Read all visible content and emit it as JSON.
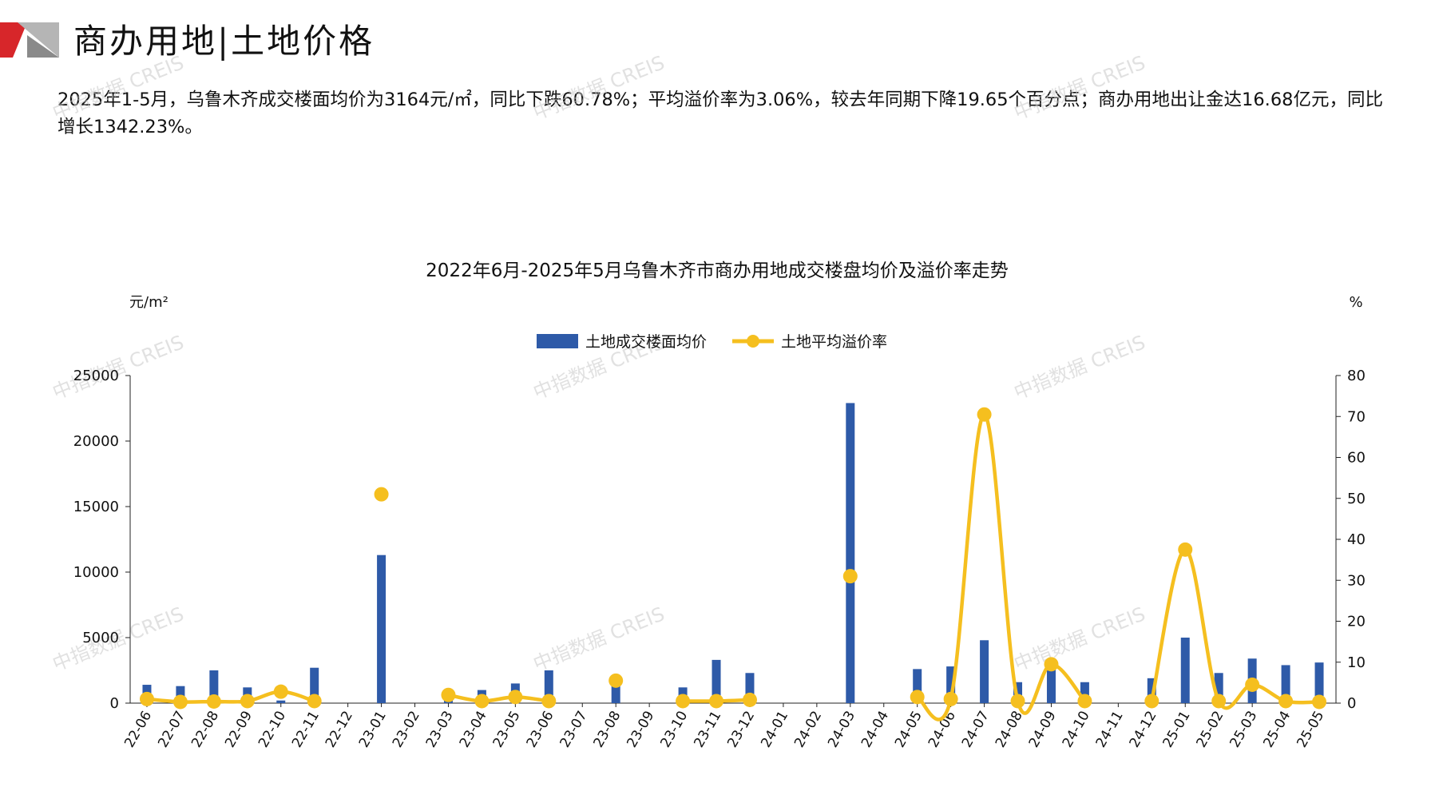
{
  "header": {
    "title": "商办用地|土地价格",
    "logo": "red-grey-triangle-logo"
  },
  "summary": "2025年1-5月，乌鲁木齐成交楼面均价为3164元/㎡，同比下跌60.78%；平均溢价率为3.06%，较去年同期下降19.65个百分点；商办用地出让金达16.68亿元，同比增长1342.23%。",
  "watermark_text": "中指数据 CREIS",
  "colors": {
    "bar": "#2e5aa8",
    "line": "#f5bf1f",
    "accent_red": "#d7262a",
    "logo_grey": "#b5b5b5"
  },
  "chart_data": {
    "type": "bar+line",
    "title": "2022年6月-2025年5月乌鲁木齐市商办用地成交楼盘均价及溢价率走势",
    "y_left_unit": "元/m²",
    "y_right_unit": "%",
    "y_left_lim": [
      0,
      25000
    ],
    "y_right_lim": [
      0,
      80
    ],
    "y_left_ticks": [
      0,
      5000,
      10000,
      15000,
      20000,
      25000
    ],
    "y_right_ticks": [
      0,
      10,
      20,
      30,
      40,
      50,
      60,
      70,
      80
    ],
    "legend_position": "top-center",
    "grid": false,
    "categories": [
      "22-06",
      "22-07",
      "22-08",
      "22-09",
      "22-10",
      "22-11",
      "22-12",
      "23-01",
      "23-02",
      "23-03",
      "23-04",
      "23-05",
      "23-06",
      "23-07",
      "23-08",
      "23-09",
      "23-10",
      "23-11",
      "23-12",
      "24-01",
      "24-02",
      "24-03",
      "24-04",
      "24-05",
      "24-06",
      "24-07",
      "24-08",
      "24-09",
      "24-10",
      "24-11",
      "24-12",
      "25-01",
      "25-02",
      "25-03",
      "25-04",
      "25-05"
    ],
    "series": [
      {
        "name": "土地成交楼面均价",
        "type": "bar",
        "axis": "left",
        "values": [
          1400,
          1300,
          2500,
          1200,
          200,
          2700,
          null,
          11300,
          null,
          500,
          1000,
          1500,
          2500,
          null,
          1500,
          null,
          1200,
          3300,
          2300,
          null,
          null,
          22900,
          null,
          2600,
          2800,
          4800,
          1600,
          3300,
          1600,
          null,
          1900,
          5000,
          2300,
          3400,
          2900,
          3100
        ]
      },
      {
        "name": "土地平均溢价率",
        "type": "line",
        "axis": "right",
        "values": [
          1,
          0.3,
          0.4,
          0.5,
          2.8,
          0.5,
          null,
          51,
          null,
          2,
          0.5,
          1.5,
          0.5,
          null,
          5.5,
          null,
          0.5,
          0.5,
          0.8,
          null,
          null,
          31,
          null,
          1.5,
          1,
          70.5,
          0.5,
          9.5,
          0.5,
          null,
          0.5,
          37.5,
          0.5,
          4.5,
          0.5,
          0.3
        ]
      }
    ]
  }
}
